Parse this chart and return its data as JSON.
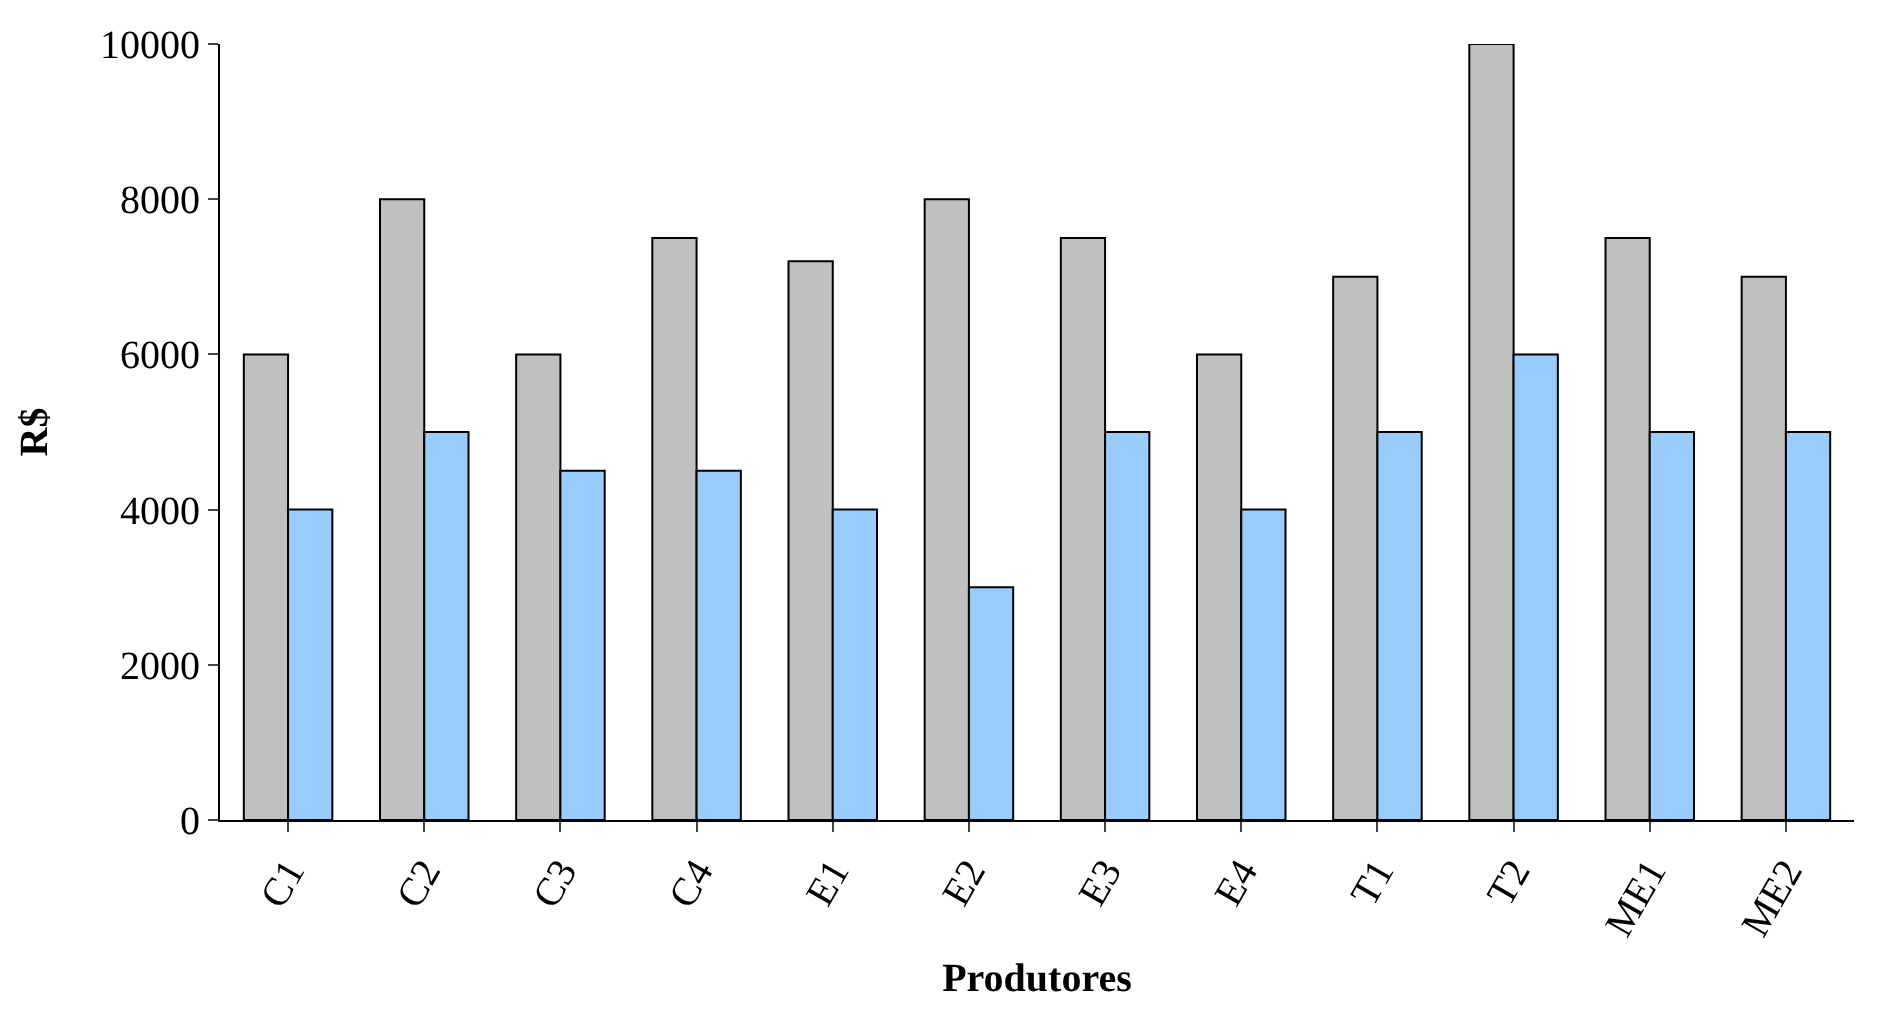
{
  "chart_data": {
    "type": "bar",
    "xlabel": "Produtores",
    "ylabel": "R$",
    "categories": [
      "C1",
      "C2",
      "C3",
      "C4",
      "E1",
      "E2",
      "E3",
      "E4",
      "T1",
      "T2",
      "ME1",
      "ME2"
    ],
    "series": [
      {
        "color": "#c0c0c0",
        "values": [
          6000,
          8000,
          6000,
          7500,
          7200,
          8000,
          7500,
          6000,
          7000,
          10000,
          7500,
          7000
        ]
      },
      {
        "color": "#99ccff",
        "values": [
          4000,
          5000,
          4500,
          4500,
          4000,
          3000,
          5000,
          4000,
          5000,
          6000,
          5000,
          5000
        ]
      }
    ],
    "ylim": [
      0,
      10000
    ],
    "yticks": [
      0,
      2000,
      4000,
      6000,
      8000,
      10000
    ]
  }
}
